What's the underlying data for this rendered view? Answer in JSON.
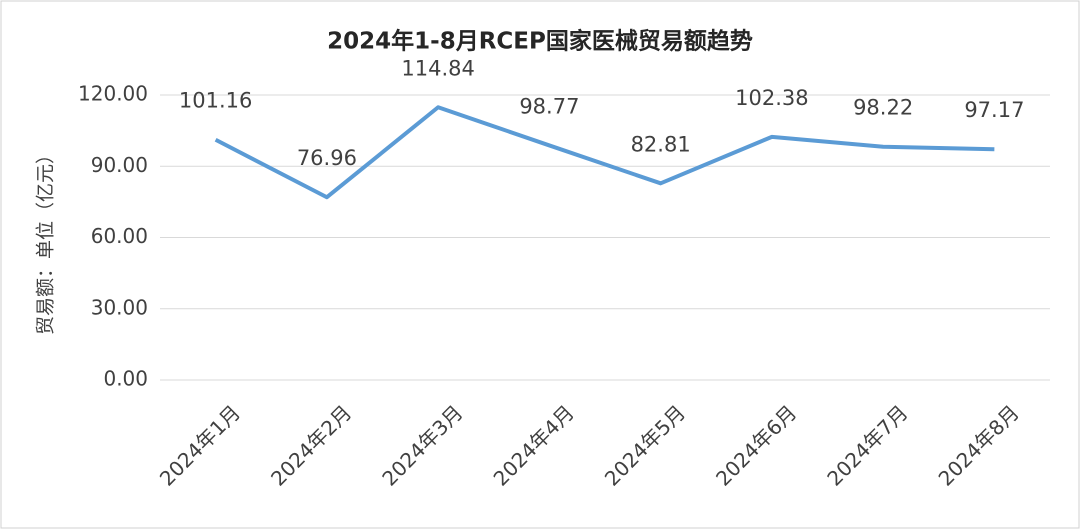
{
  "chart_data": {
    "type": "line",
    "title": "2024年1-8月RCEP国家医械贸易额趋势",
    "y_label": "贸易额：单位（亿元）",
    "categories": [
      "2024年1月",
      "2024年2月",
      "2024年3月",
      "2024年4月",
      "2024年5月",
      "2024年6月",
      "2024年7月",
      "2024年8月"
    ],
    "series": [
      {
        "name": "贸易额",
        "color": "#5b9bd5",
        "values": [
          101.16,
          76.96,
          114.84,
          98.77,
          82.81,
          102.38,
          98.22,
          97.17
        ]
      }
    ],
    "ylim": [
      0,
      120
    ],
    "yticks": [
      {
        "value": 0,
        "label": "0.00"
      },
      {
        "value": 30,
        "label": "30.00"
      },
      {
        "value": 60,
        "label": "60.00"
      },
      {
        "value": 90,
        "label": "90.00"
      },
      {
        "value": 120,
        "label": "120.00"
      }
    ],
    "grid": true,
    "data_labels": true
  }
}
